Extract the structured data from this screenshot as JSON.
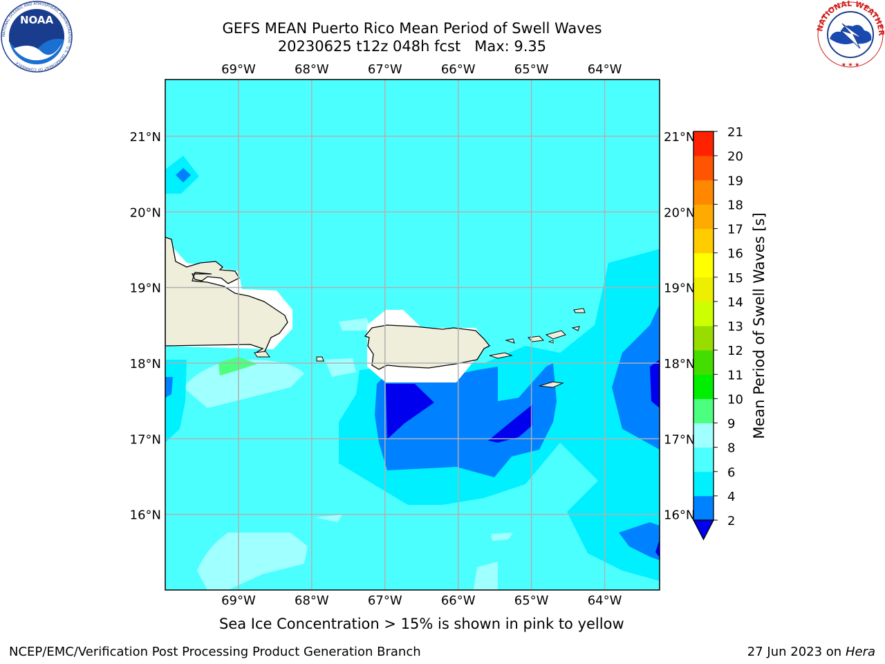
{
  "header": {
    "title_line1": "GEFS MEAN Puerto Rico Mean Period of Swell Waves",
    "title_line2": "20230625 t12z 048h fcst   Max: 9.35"
  },
  "logos": {
    "left": {
      "icon": "noaa-logo",
      "text": "NOAA",
      "ring_text": "NATIONAL OCEANIC AND ATMOSPHERIC ADMINISTRATION · U.S. DEPARTMENT OF COMMERCE"
    },
    "right": {
      "icon": "nws-logo",
      "ring_text": "NATIONAL WEATHER SERVICE"
    }
  },
  "map": {
    "lon_labels": [
      "69°W",
      "68°W",
      "67°W",
      "66°W",
      "65°W",
      "64°W"
    ],
    "lat_labels": [
      "21°N",
      "20°N",
      "19°N",
      "18°N",
      "17°N",
      "16°N"
    ],
    "lon_values": [
      -69,
      -68,
      -67,
      -66,
      -65,
      -64
    ],
    "lat_values": [
      21,
      20,
      19,
      18,
      17,
      16
    ],
    "extent": {
      "lon": [
        -70.0,
        -63.25
      ],
      "lat": [
        15.0,
        21.75
      ]
    },
    "grid": true,
    "land_color": "#efeedb",
    "ocean_base_color": "#4cffff"
  },
  "colorbar": {
    "label": "Mean Period of Swell Waves [s]",
    "ticks": [
      "2",
      "4",
      "6",
      "8",
      "9",
      "10",
      "11",
      "12",
      "13",
      "14",
      "15",
      "16",
      "17",
      "18",
      "19",
      "20",
      "21"
    ],
    "levels": [
      2,
      4,
      6,
      8,
      9,
      10,
      11,
      12,
      13,
      14,
      15,
      16,
      17,
      18,
      19,
      20,
      21
    ],
    "colors": [
      "#0081ff",
      "#00f0ff",
      "#4dffff",
      "#a0ffff",
      "#4cff7e",
      "#00ee00",
      "#44dd00",
      "#99dd00",
      "#ccff00",
      "#eeee00",
      "#ffff00",
      "#ffcc00",
      "#ffaa00",
      "#ff8800",
      "#ff5500",
      "#ff2200"
    ],
    "under_color": "#0000ee",
    "extend": "min"
  },
  "note": "Sea Ice Concentration > 15% is shown in pink to yellow",
  "footer": {
    "left": "NCEP/EMC/Verification Post Processing Product Generation Branch",
    "right_prefix": "27 Jun 2023 on",
    "right_machine": "Hera"
  }
}
